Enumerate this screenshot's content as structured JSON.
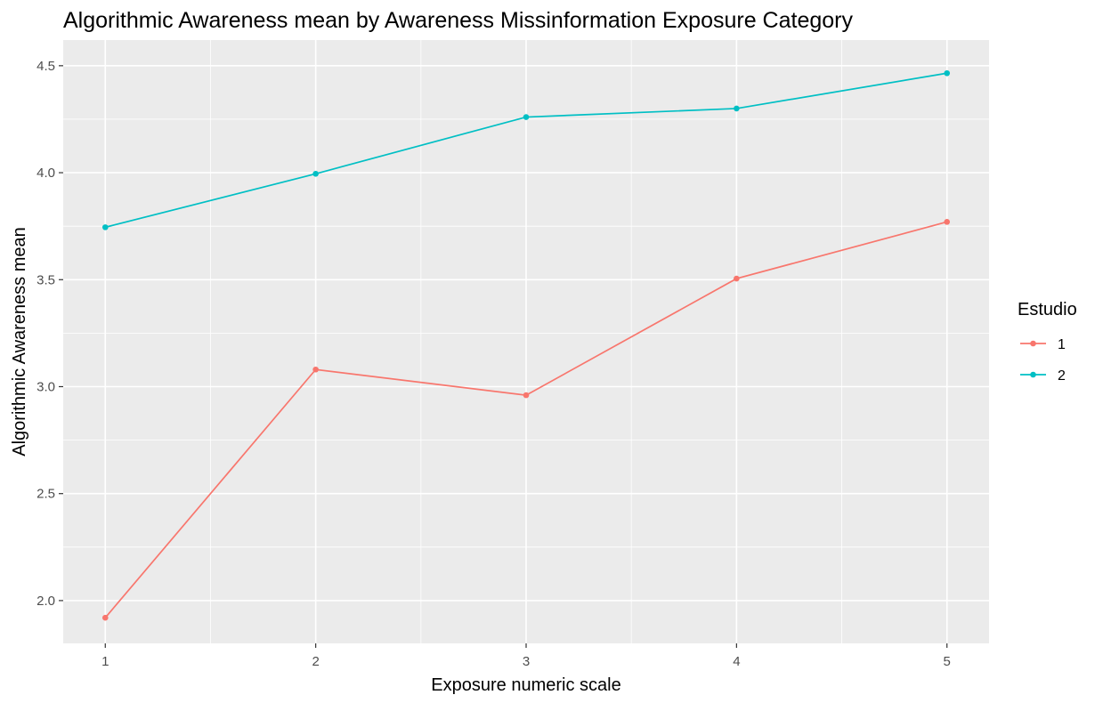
{
  "chart_data": {
    "type": "line",
    "title": "Algorithmic Awareness mean by Awareness Missinformation Exposure Category",
    "xlabel": "Exposure numeric scale",
    "ylabel": "Algorithmic Awareness mean",
    "x": [
      1,
      2,
      3,
      4,
      5
    ],
    "x_ticks": [
      "1",
      "2",
      "3",
      "4",
      "5"
    ],
    "y_ticks": [
      "2.0",
      "2.5",
      "3.0",
      "3.5",
      "4.0",
      "4.5"
    ],
    "xlim": [
      0.8,
      5.2
    ],
    "ylim": [
      1.8,
      4.62
    ],
    "grid": true,
    "legend": {
      "title": "Estudio",
      "position": "right"
    },
    "series": [
      {
        "name": "1",
        "color": "#F8766D",
        "values": [
          1.92,
          3.08,
          2.96,
          3.505,
          3.77
        ]
      },
      {
        "name": "2",
        "color": "#00BFC4",
        "values": [
          3.745,
          3.995,
          4.26,
          4.3,
          4.465
        ]
      }
    ]
  }
}
